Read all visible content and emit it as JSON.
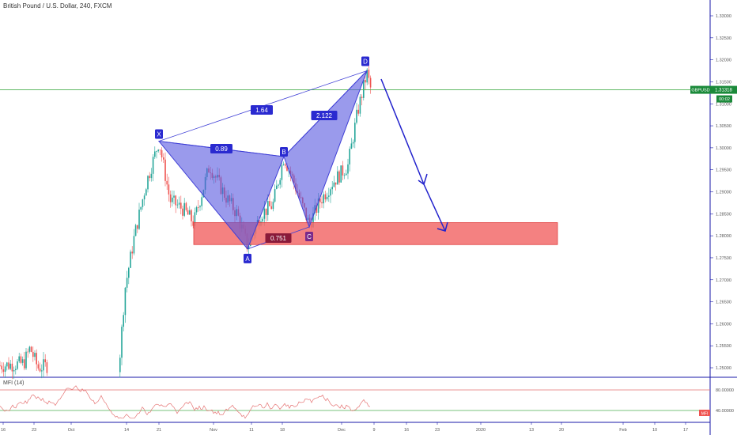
{
  "header": {
    "symbol_title": "British Pound / U.S. Dollar, 240, FXCM"
  },
  "indicator": {
    "label": "MFI (14)",
    "badge": "MFI",
    "levels": [
      {
        "label": "80.00000",
        "value": 80
      },
      {
        "label": "40.00000",
        "value": 40
      }
    ]
  },
  "price_tag": {
    "symbol": "GBPUSD",
    "price": "1.31318",
    "countdown": "00:02"
  },
  "colors": {
    "up": "#26a69a",
    "down": "#ef5350",
    "pattern": "#3f3fd6",
    "box": "#f26b6b",
    "arrow": "#2222cc",
    "mfi": "#e57373",
    "axis": "#1a1aa8"
  },
  "chart_data": {
    "type": "candlestick",
    "y_axis_labels": [
      "1.33000",
      "1.32500",
      "1.32000",
      "1.31500",
      "1.31000",
      "1.30500",
      "1.30000",
      "1.29500",
      "1.29000",
      "1.28500",
      "1.28000",
      "1.27500",
      "1.27000",
      "1.26500",
      "1.26000",
      "1.25500",
      "1.25000"
    ],
    "x_axis_labels": [
      "16",
      "23",
      "Oct",
      "14",
      "21",
      "Nov",
      "11",
      "18",
      "Dec",
      "9",
      "16",
      "23",
      "2020",
      "13",
      "20",
      "Feb",
      "10",
      "17"
    ],
    "current_price": 1.31318,
    "harmonic_points": [
      {
        "label": "X",
        "price": 1.3015
      },
      {
        "label": "A",
        "price": 1.277
      },
      {
        "label": "B",
        "price": 1.298
      },
      {
        "label": "C",
        "price": 1.282
      },
      {
        "label": "D",
        "price": 1.3175
      }
    ],
    "ratios": [
      {
        "label": "0.89"
      },
      {
        "label": "0.751"
      },
      {
        "label": "1.64"
      },
      {
        "label": "2.122"
      }
    ],
    "target_zone": {
      "top": 1.283,
      "bottom": 1.278
    },
    "mfi_range": [
      20,
      100
    ]
  }
}
